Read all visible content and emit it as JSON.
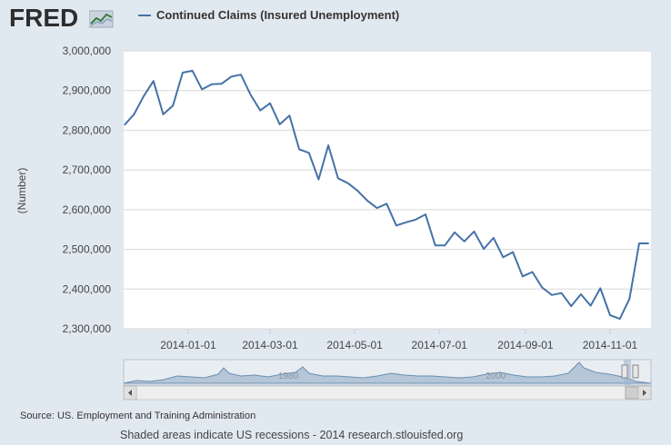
{
  "logo": {
    "text": "FRED",
    "icon": "chart-line-icon"
  },
  "legend": {
    "label": "Continued Claims (Insured Unemployment)",
    "color": "#4572a7"
  },
  "source": "Source: US. Employment and Training Administration",
  "footer": "Shaded areas indicate US recessions - 2014 research.stlouisfed.org",
  "navigator": {
    "labels": [
      "1980",
      "2000"
    ]
  },
  "chart_data": {
    "type": "line",
    "ylabel": "(Number)",
    "ylim": [
      2300000,
      3000000
    ],
    "yticks": [
      "2,300,000",
      "2,400,000",
      "2,500,000",
      "2,600,000",
      "2,700,000",
      "2,800,000",
      "2,900,000",
      "3,000,000"
    ],
    "xticks": [
      "2014-01-01",
      "2014-03-01",
      "2014-05-01",
      "2014-07-01",
      "2014-09-01",
      "2014-11-01"
    ],
    "grid": true,
    "series": [
      {
        "name": "Continued Claims (Insured Unemployment)",
        "x": [
          "2013-11-16",
          "2013-11-23",
          "2013-11-30",
          "2013-12-07",
          "2013-12-14",
          "2013-12-21",
          "2013-12-28",
          "2014-01-04",
          "2014-01-11",
          "2014-01-18",
          "2014-01-25",
          "2014-02-01",
          "2014-02-08",
          "2014-02-15",
          "2014-02-22",
          "2014-03-01",
          "2014-03-08",
          "2014-03-15",
          "2014-03-22",
          "2014-03-29",
          "2014-04-05",
          "2014-04-12",
          "2014-04-19",
          "2014-04-26",
          "2014-05-03",
          "2014-05-10",
          "2014-05-17",
          "2014-05-24",
          "2014-05-31",
          "2014-06-07",
          "2014-06-14",
          "2014-06-21",
          "2014-06-28",
          "2014-07-05",
          "2014-07-12",
          "2014-07-19",
          "2014-07-26",
          "2014-08-02",
          "2014-08-09",
          "2014-08-16",
          "2014-08-23",
          "2014-08-30",
          "2014-09-06",
          "2014-09-13",
          "2014-09-20",
          "2014-09-27",
          "2014-10-04",
          "2014-10-11",
          "2014-10-18",
          "2014-10-25",
          "2014-11-01",
          "2014-11-08",
          "2014-11-15",
          "2014-11-22",
          "2014-11-29"
        ],
        "values": [
          2813000,
          2840000,
          2886000,
          2924000,
          2840000,
          2862000,
          2945000,
          2950000,
          2903000,
          2916000,
          2917000,
          2935000,
          2940000,
          2889000,
          2850000,
          2868000,
          2815000,
          2837000,
          2752000,
          2743000,
          2676000,
          2762000,
          2679000,
          2667000,
          2648000,
          2623000,
          2604000,
          2615000,
          2560000,
          2568000,
          2575000,
          2588000,
          2510000,
          2510000,
          2543000,
          2520000,
          2545000,
          2501000,
          2529000,
          2480000,
          2493000,
          2432000,
          2443000,
          2404000,
          2385000,
          2390000,
          2357000,
          2387000,
          2358000,
          2402000,
          2334000,
          2325000,
          2375000,
          2515000,
          2515000
        ]
      }
    ]
  }
}
